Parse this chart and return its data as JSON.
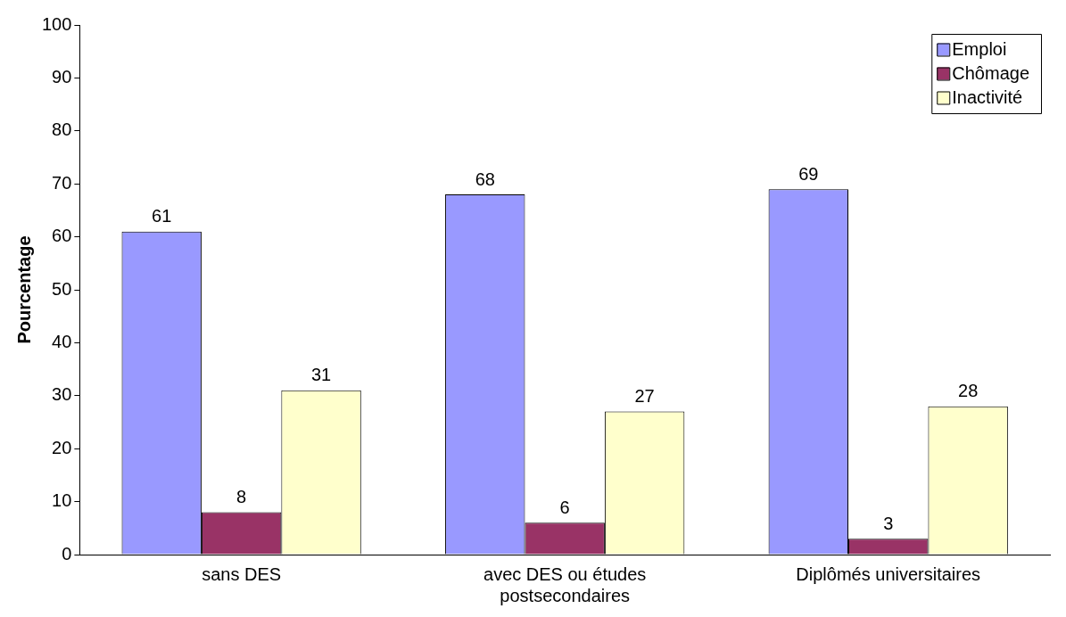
{
  "chart_data": {
    "type": "bar",
    "ylabel": "Pourcentage",
    "categories": [
      "sans DES",
      "avec DES ou études postsecondaires",
      "Diplômés universitaires"
    ],
    "series": [
      {
        "name": "Emploi",
        "color": "#9999ff",
        "values": [
          61,
          68,
          69
        ]
      },
      {
        "name": "Chômage",
        "color": "#993366",
        "values": [
          8,
          6,
          3
        ]
      },
      {
        "name": "Inactivité",
        "color": "#ffffcc",
        "values": [
          31,
          27,
          28
        ]
      }
    ],
    "ylim": [
      0,
      100
    ],
    "yticks": [
      0,
      10,
      20,
      30,
      40,
      50,
      60,
      70,
      80,
      90,
      100
    ],
    "grid": false,
    "legend": "top right",
    "data_labels": true
  }
}
